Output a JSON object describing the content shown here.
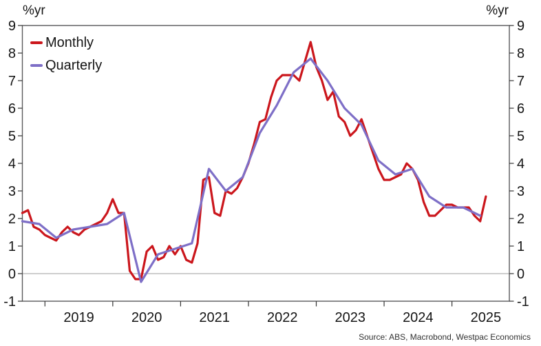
{
  "axis_unit_label_left": "%yr",
  "axis_unit_label_right": "%yr",
  "legend": [
    {
      "id": "monthly",
      "label": "Monthly",
      "color": "#cb161c"
    },
    {
      "id": "quarterly",
      "label": "Quarterly",
      "color": "#7e6fc7"
    }
  ],
  "source": "Source: ABS, Macrobond, Westpac Economics",
  "chart_data": {
    "type": "line",
    "title": "",
    "ylabel": "%yr",
    "ylim": [
      -1,
      9
    ],
    "y_ticks": [
      -1,
      0,
      1,
      2,
      3,
      4,
      5,
      6,
      7,
      8,
      9
    ],
    "x_year_ticks": [
      2019,
      2020,
      2021,
      2022,
      2023,
      2024,
      2025
    ],
    "x_range": [
      "2018-09",
      "2025-11"
    ],
    "zero_line": true,
    "grid": "zero-line-only",
    "legend_position": "top-left-inside",
    "frame": true,
    "series": [
      {
        "name": "Monthly",
        "color": "#cb161c",
        "interval_months": 1,
        "start": "2018-09",
        "end": "2025-07",
        "values": [
          2.2,
          2.3,
          1.7,
          1.6,
          1.4,
          1.3,
          1.2,
          1.5,
          1.7,
          1.5,
          1.4,
          1.6,
          1.7,
          1.8,
          1.9,
          2.2,
          2.7,
          2.2,
          2.2,
          0.1,
          -0.2,
          -0.2,
          0.8,
          1.0,
          0.5,
          0.6,
          1.0,
          0.7,
          1.0,
          0.5,
          0.4,
          1.1,
          3.4,
          3.5,
          2.2,
          2.1,
          3.0,
          2.9,
          3.1,
          3.5,
          4.0,
          4.7,
          5.5,
          5.6,
          6.4,
          7.0,
          7.2,
          7.2,
          7.2,
          7.0,
          7.7,
          8.4,
          7.5,
          7.0,
          6.3,
          6.6,
          5.7,
          5.5,
          5.0,
          5.2,
          5.6,
          5.0,
          4.4,
          3.8,
          3.4,
          3.4,
          3.5,
          3.6,
          4.0,
          3.8,
          3.4,
          2.6,
          2.1,
          2.1,
          2.3,
          2.5,
          2.5,
          2.4,
          2.4,
          2.4,
          2.1,
          1.9,
          2.8
        ]
      },
      {
        "name": "Quarterly",
        "color": "#7e6fc7",
        "interval_months": 3,
        "start": "2018-09",
        "end": "2025-06",
        "values": [
          1.9,
          1.8,
          1.3,
          1.6,
          1.7,
          1.8,
          2.2,
          -0.3,
          0.7,
          0.9,
          1.1,
          3.8,
          3.0,
          3.5,
          5.1,
          6.1,
          7.3,
          7.8,
          7.0,
          6.0,
          5.4,
          4.1,
          3.6,
          3.8,
          2.8,
          2.4,
          2.4,
          2.1
        ]
      }
    ]
  }
}
